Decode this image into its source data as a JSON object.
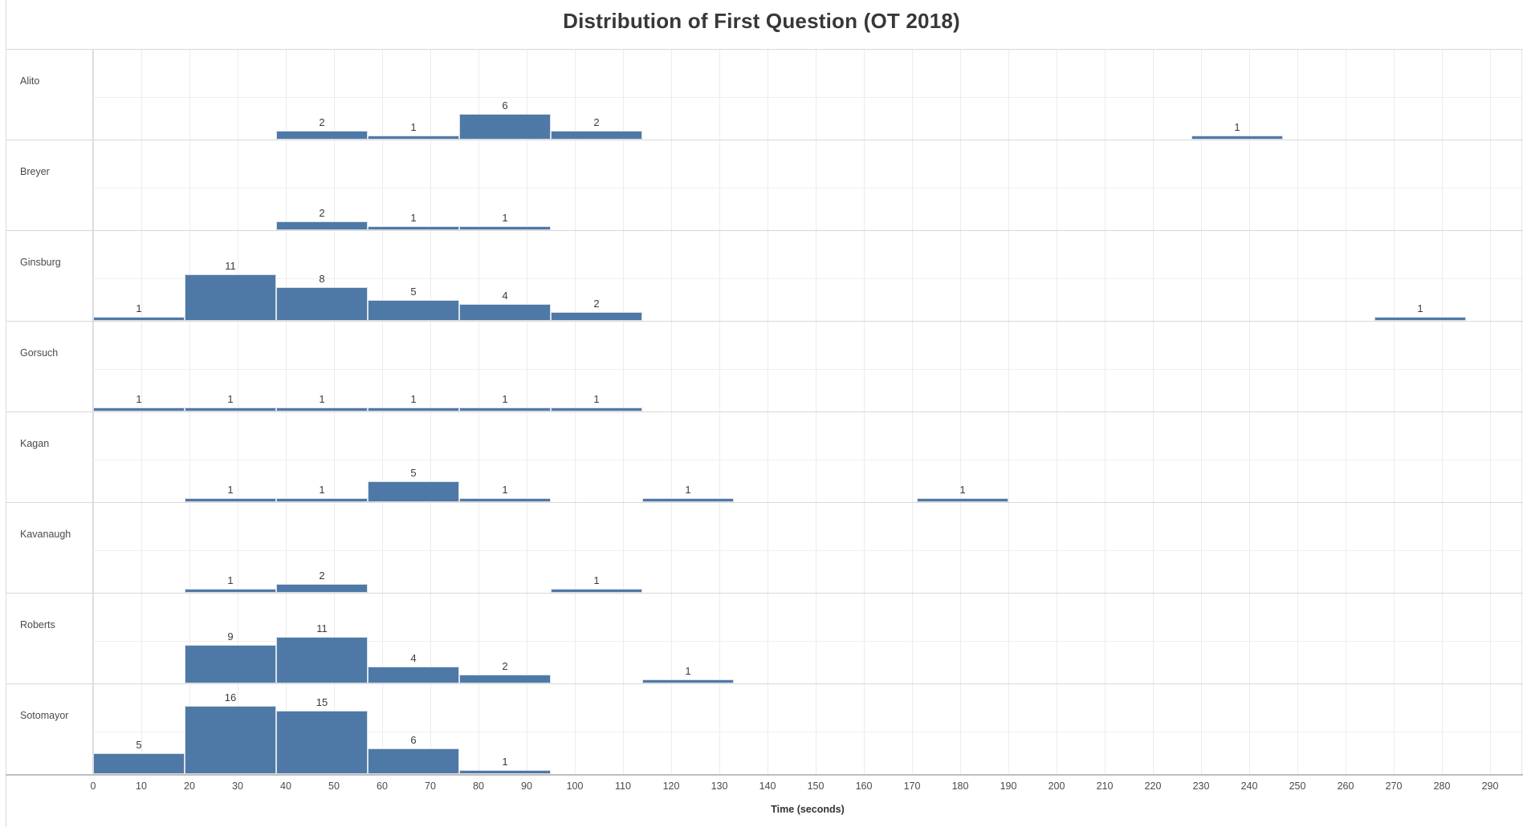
{
  "title": "Distribution of First Question (OT 2018)",
  "chart_data": {
    "type": "bar",
    "subtype": "histogram-small-multiples",
    "title": "Distribution of First Question (OT 2018)",
    "xlabel": "Time (seconds)",
    "ylabel": "",
    "bin_width_seconds": 19,
    "x_range": [
      0,
      297
    ],
    "x_ticks": [
      0,
      10,
      20,
      30,
      40,
      50,
      60,
      70,
      80,
      90,
      100,
      110,
      120,
      130,
      140,
      150,
      160,
      170,
      180,
      190,
      200,
      210,
      220,
      230,
      240,
      250,
      260,
      270,
      280,
      290
    ],
    "grid": "on",
    "legend": "none",
    "row_gridline_at_count": 10,
    "rows": [
      {
        "label": "Alito",
        "bars": [
          {
            "start": 38,
            "count": 2
          },
          {
            "start": 57,
            "count": 1
          },
          {
            "start": 76,
            "count": 6
          },
          {
            "start": 95,
            "count": 2
          },
          {
            "start": 228,
            "count": 1
          }
        ]
      },
      {
        "label": "Breyer",
        "bars": [
          {
            "start": 38,
            "count": 2
          },
          {
            "start": 57,
            "count": 1
          },
          {
            "start": 76,
            "count": 1
          }
        ]
      },
      {
        "label": "Ginsburg",
        "bars": [
          {
            "start": 0,
            "count": 1
          },
          {
            "start": 19,
            "count": 11
          },
          {
            "start": 38,
            "count": 8
          },
          {
            "start": 57,
            "count": 5
          },
          {
            "start": 76,
            "count": 4
          },
          {
            "start": 95,
            "count": 2
          },
          {
            "start": 266,
            "count": 1
          }
        ]
      },
      {
        "label": "Gorsuch",
        "bars": [
          {
            "start": 0,
            "count": 1
          },
          {
            "start": 19,
            "count": 1
          },
          {
            "start": 38,
            "count": 1
          },
          {
            "start": 57,
            "count": 1
          },
          {
            "start": 76,
            "count": 1
          },
          {
            "start": 95,
            "count": 1
          }
        ]
      },
      {
        "label": "Kagan",
        "bars": [
          {
            "start": 19,
            "count": 1
          },
          {
            "start": 38,
            "count": 1
          },
          {
            "start": 57,
            "count": 5
          },
          {
            "start": 76,
            "count": 1
          },
          {
            "start": 114,
            "count": 1
          },
          {
            "start": 171,
            "count": 1
          }
        ]
      },
      {
        "label": "Kavanaugh",
        "bars": [
          {
            "start": 19,
            "count": 1
          },
          {
            "start": 38,
            "count": 2
          },
          {
            "start": 95,
            "count": 1
          }
        ]
      },
      {
        "label": "Roberts",
        "bars": [
          {
            "start": 19,
            "count": 9
          },
          {
            "start": 38,
            "count": 11
          },
          {
            "start": 57,
            "count": 4
          },
          {
            "start": 76,
            "count": 2
          },
          {
            "start": 114,
            "count": 1
          }
        ]
      },
      {
        "label": "Sotomayor",
        "bars": [
          {
            "start": 0,
            "count": 5
          },
          {
            "start": 19,
            "count": 16
          },
          {
            "start": 38,
            "count": 15
          },
          {
            "start": 57,
            "count": 6
          },
          {
            "start": 76,
            "count": 1
          }
        ]
      }
    ],
    "colors": {
      "bar_fill": "#4e79a7",
      "bar_border": "#d9e0e7",
      "gridline": "#ececec",
      "row_separator": "#d8d8d8",
      "axis_line": "#bfbfbf",
      "text": "#4a4a4a",
      "title_text": "#383838"
    }
  }
}
